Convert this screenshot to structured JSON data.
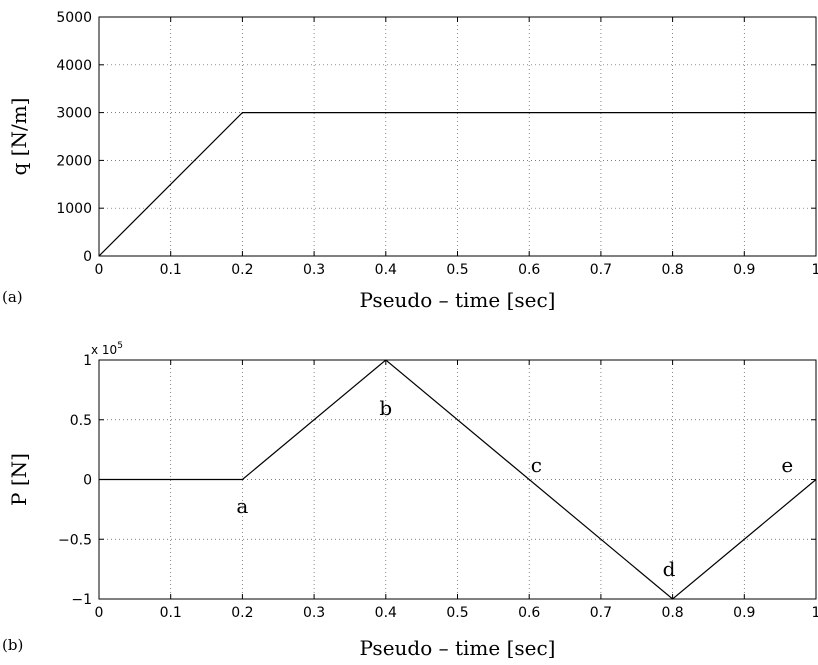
{
  "chart_data": [
    {
      "type": "line",
      "panel_label": "(a)",
      "xlabel": "Pseudo – time  [sec]",
      "ylabel": "q [N/m]",
      "xlim": [
        0,
        1
      ],
      "ylim": [
        0,
        5000
      ],
      "xticks": [
        0,
        0.1,
        0.2,
        0.3,
        0.4,
        0.5,
        0.6,
        0.7,
        0.8,
        0.9,
        1
      ],
      "xtick_labels": [
        "0",
        "0.1",
        "0.2",
        "0.3",
        "0.4",
        "0.5",
        "0.6",
        "0.7",
        "0.8",
        "0.9",
        "1"
      ],
      "yticks": [
        0,
        1000,
        2000,
        3000,
        4000,
        5000
      ],
      "ytick_labels": [
        "0",
        "1000",
        "2000",
        "3000",
        "4000",
        "5000"
      ],
      "grid": true,
      "series": [
        {
          "x": [
            0,
            0.2,
            1
          ],
          "y": [
            0,
            3000,
            3000
          ]
        }
      ]
    },
    {
      "type": "line",
      "panel_label": "(b)",
      "xlabel": "Pseudo – time  [sec]",
      "ylabel": "P  [N]",
      "xlim": [
        0,
        1
      ],
      "ylim": [
        -1,
        1
      ],
      "y_multiplier": {
        "base": "x 10",
        "exponent": "5"
      },
      "xticks": [
        0,
        0.1,
        0.2,
        0.3,
        0.4,
        0.5,
        0.6,
        0.7,
        0.8,
        0.9,
        1
      ],
      "xtick_labels": [
        "0",
        "0.1",
        "0.2",
        "0.3",
        "0.4",
        "0.5",
        "0.6",
        "0.7",
        "0.8",
        "0.9",
        "1"
      ],
      "yticks": [
        -1,
        -0.5,
        0,
        0.5,
        1
      ],
      "ytick_labels": [
        "−1",
        "−0.5",
        "0",
        "0.5",
        "1"
      ],
      "grid": true,
      "series": [
        {
          "x": [
            0,
            0.2,
            0.4,
            0.8,
            1
          ],
          "y": [
            0,
            0,
            1,
            -1,
            0
          ]
        }
      ],
      "annotations": [
        {
          "text": "a",
          "x": 0.2,
          "y": -0.22
        },
        {
          "text": "b",
          "x": 0.4,
          "y": 0.6
        },
        {
          "text": "c",
          "x": 0.61,
          "y": 0.12
        },
        {
          "text": "d",
          "x": 0.795,
          "y": -0.75
        },
        {
          "text": "e",
          "x": 0.96,
          "y": 0.12
        }
      ]
    }
  ]
}
